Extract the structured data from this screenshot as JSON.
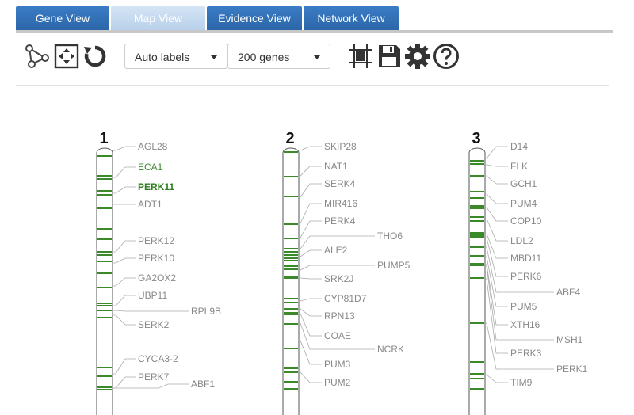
{
  "tabs": [
    {
      "label": "Gene View",
      "active": false
    },
    {
      "label": "Map View",
      "active": true
    },
    {
      "label": "Evidence View",
      "active": false
    },
    {
      "label": "Network View",
      "active": false
    }
  ],
  "toolbar": {
    "labels_select": "Auto labels",
    "genes_select": "200 genes",
    "icons": [
      "network-graph-icon",
      "fit-to-view-icon",
      "reset-icon",
      "grid-select-icon",
      "save-icon",
      "settings-icon",
      "help-icon"
    ]
  },
  "colors": {
    "band": "#3a8a2a",
    "label": "#888888",
    "highlight": "#3c8a2e",
    "tab": "#2c6db5"
  },
  "chromosomes": [
    {
      "number": "1",
      "genes": [
        {
          "label": "AGL28",
          "highlight": false
        },
        {
          "label": "ECA1",
          "highlight": true
        },
        {
          "label": "PERK11",
          "highlight": true,
          "bold": true
        },
        {
          "label": "ADT1",
          "highlight": false
        },
        {
          "label": "PERK12",
          "highlight": false
        },
        {
          "label": "PERK10",
          "highlight": false
        },
        {
          "label": "GA2OX2",
          "highlight": false
        },
        {
          "label": "UBP11",
          "highlight": false
        },
        {
          "label": "RPL9B",
          "highlight": false
        },
        {
          "label": "SERK2",
          "highlight": false
        },
        {
          "label": "CYCA3-2",
          "highlight": false
        },
        {
          "label": "PERK7",
          "highlight": false
        },
        {
          "label": "ABF1",
          "highlight": false
        }
      ]
    },
    {
      "number": "2",
      "genes": [
        {
          "label": "SKIP28"
        },
        {
          "label": "NAT1"
        },
        {
          "label": "SERK4"
        },
        {
          "label": "MIR416"
        },
        {
          "label": "PERK4"
        },
        {
          "label": "THO6"
        },
        {
          "label": "ALE2"
        },
        {
          "label": "PUMP5"
        },
        {
          "label": "SRK2J"
        },
        {
          "label": "CYP81D7"
        },
        {
          "label": "RPN13"
        },
        {
          "label": "COAE"
        },
        {
          "label": "NCRK"
        },
        {
          "label": "PUM3"
        },
        {
          "label": "PUM2"
        }
      ]
    },
    {
      "number": "3",
      "genes": [
        {
          "label": "D14"
        },
        {
          "label": "FLK"
        },
        {
          "label": "GCH1"
        },
        {
          "label": "PUM4"
        },
        {
          "label": "COP10"
        },
        {
          "label": "LDL2"
        },
        {
          "label": "MBD11"
        },
        {
          "label": "PERK6"
        },
        {
          "label": "ABF4"
        },
        {
          "label": "PUM5"
        },
        {
          "label": "XTH16"
        },
        {
          "label": "MSH1"
        },
        {
          "label": "PERK3"
        },
        {
          "label": "PERK1"
        },
        {
          "label": "TIM9"
        }
      ]
    }
  ]
}
